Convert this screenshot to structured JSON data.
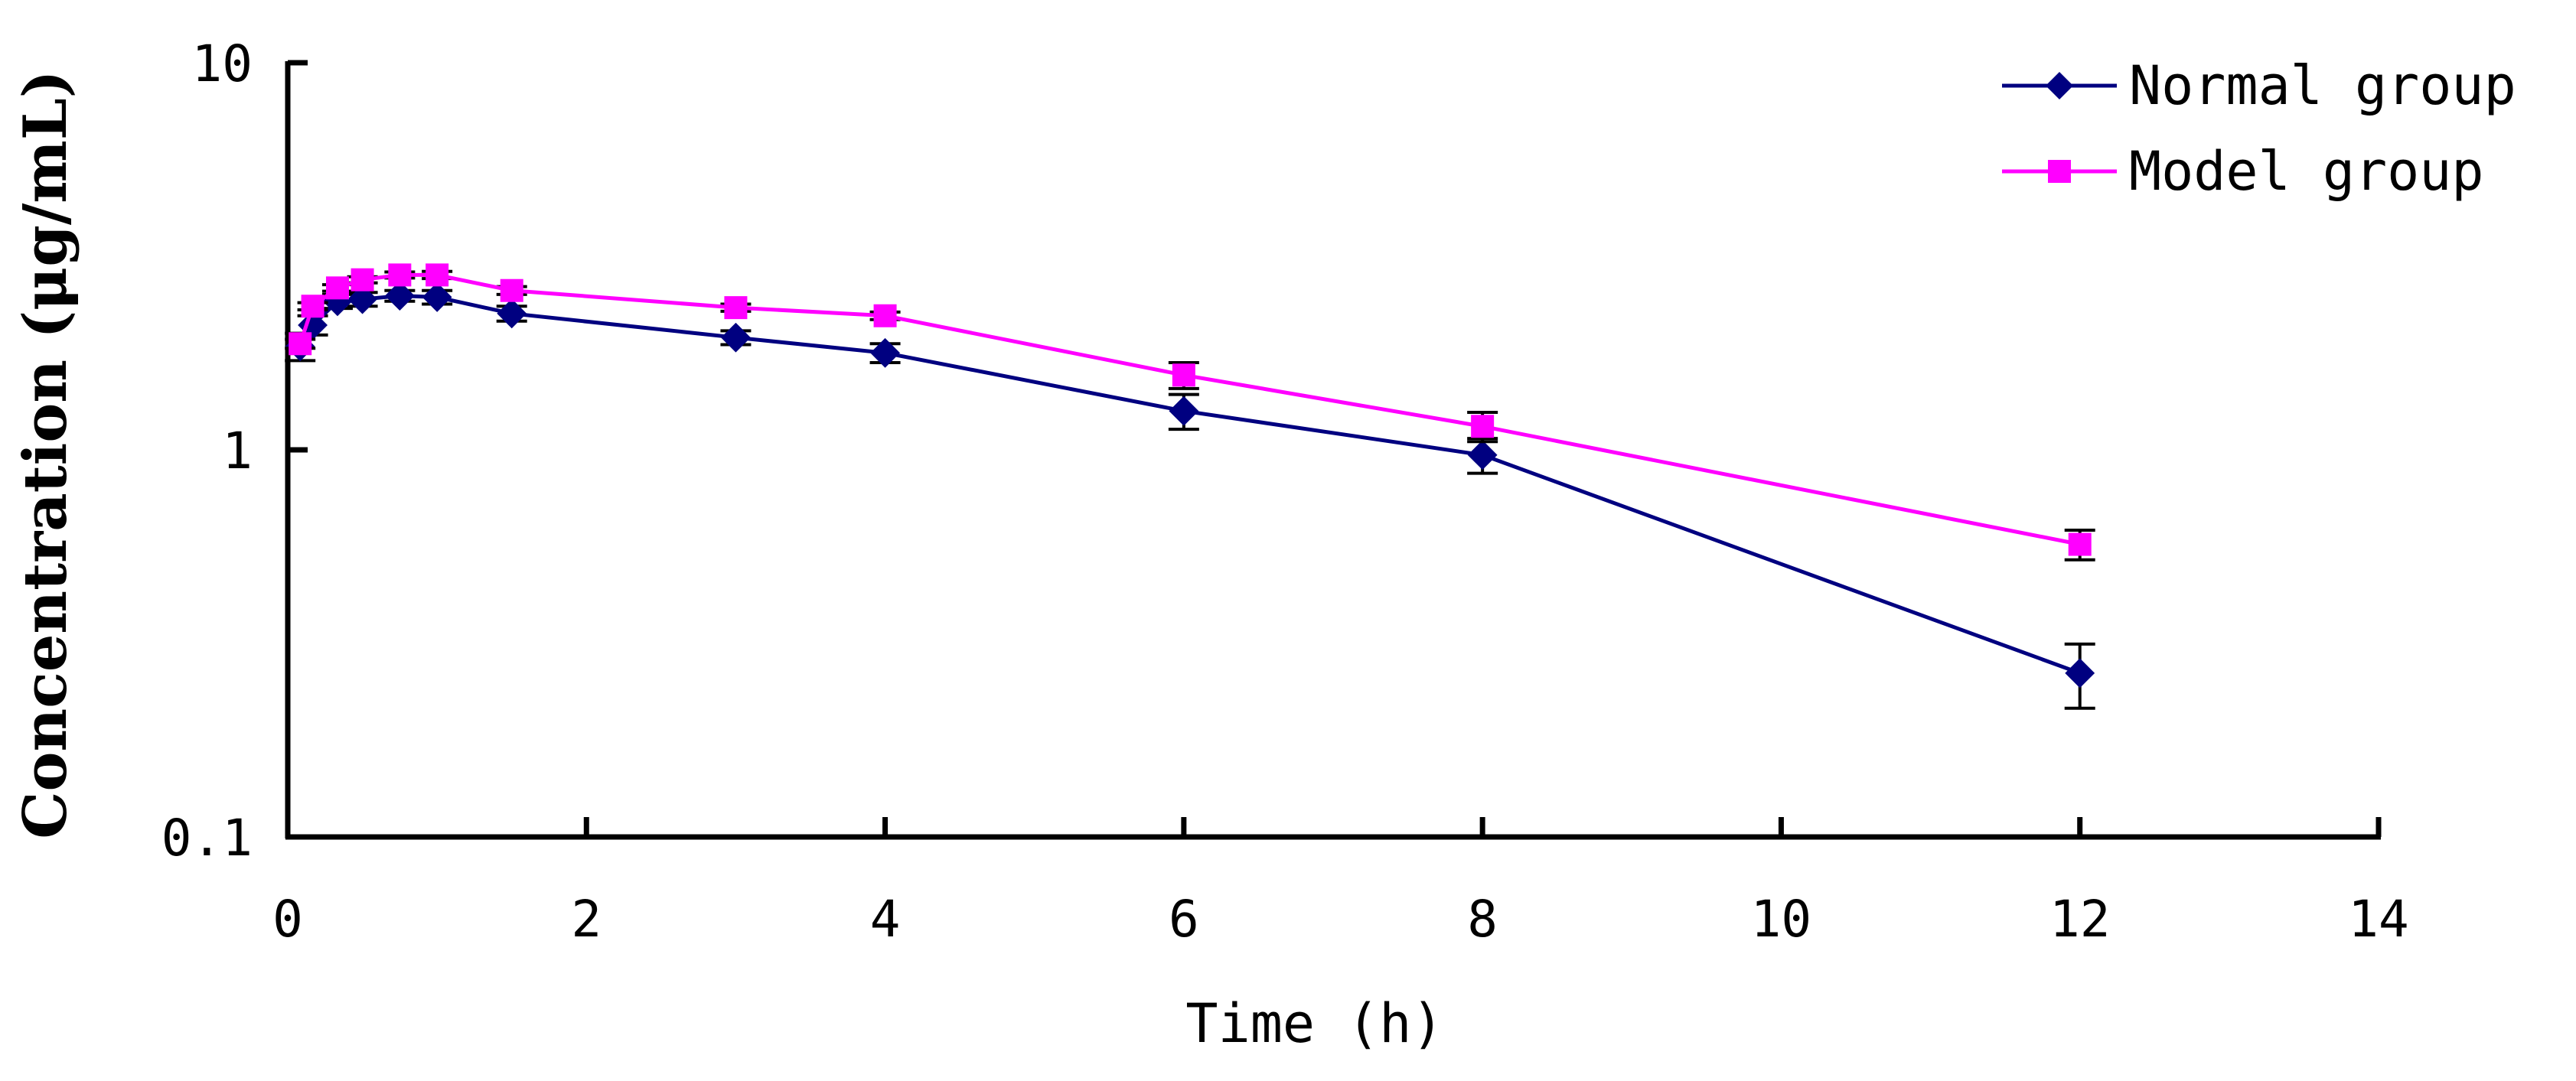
{
  "chart_data": {
    "type": "line",
    "title": "",
    "xlabel": "Time (h)",
    "ylabel": "Concentration (μg/mL)",
    "x_axis": {
      "min": 0,
      "max": 14,
      "ticks": [
        0,
        2,
        4,
        6,
        8,
        10,
        12,
        14
      ],
      "tick_labels": [
        "0",
        "2",
        "4",
        "6",
        "8",
        "10",
        "12",
        "14"
      ]
    },
    "y_axis": {
      "scale": "log",
      "min": 0.1,
      "max": 10,
      "ticks": [
        0.1,
        1,
        10
      ],
      "tick_labels": [
        "0.1",
        "1",
        "10"
      ]
    },
    "grid": false,
    "legend_position": "top-right",
    "series": [
      {
        "name": "Normal group",
        "marker": "diamond",
        "color": "#000080",
        "points": [
          {
            "x": 0.083,
            "y": 1.85,
            "err": 0.15
          },
          {
            "x": 0.167,
            "y": 2.1,
            "err": 0.12
          },
          {
            "x": 0.333,
            "y": 2.42,
            "err": 0.1
          },
          {
            "x": 0.5,
            "y": 2.45,
            "err": 0.1
          },
          {
            "x": 0.75,
            "y": 2.5,
            "err": 0.08
          },
          {
            "x": 1,
            "y": 2.48,
            "err": 0.1
          },
          {
            "x": 1.5,
            "y": 2.25,
            "err": 0.1
          },
          {
            "x": 3,
            "y": 1.95,
            "err": 0.08
          },
          {
            "x": 4,
            "y": 1.78,
            "err": 0.1
          },
          {
            "x": 6,
            "y": 1.26,
            "err": 0.13
          },
          {
            "x": 8,
            "y": 0.97,
            "err": 0.1
          },
          {
            "x": 12,
            "y": 0.265,
            "err": 0.05
          }
        ]
      },
      {
        "name": "Model group",
        "marker": "square",
        "color": "#FF00FF",
        "points": [
          {
            "x": 0.083,
            "y": 1.88,
            "err": 0.05
          },
          {
            "x": 0.167,
            "y": 2.35,
            "err": 0.05
          },
          {
            "x": 0.333,
            "y": 2.62,
            "err": 0.05
          },
          {
            "x": 0.5,
            "y": 2.75,
            "err": 0.05
          },
          {
            "x": 0.75,
            "y": 2.83,
            "err": 0.05
          },
          {
            "x": 1,
            "y": 2.83,
            "err": 0.06
          },
          {
            "x": 1.5,
            "y": 2.58,
            "err": 0.06
          },
          {
            "x": 3,
            "y": 2.33,
            "err": 0.05
          },
          {
            "x": 4,
            "y": 2.22,
            "err": 0.05
          },
          {
            "x": 6,
            "y": 1.56,
            "err": 0.12
          },
          {
            "x": 8,
            "y": 1.15,
            "err": 0.1
          },
          {
            "x": 12,
            "y": 0.57,
            "err": 0.05
          }
        ]
      }
    ]
  }
}
